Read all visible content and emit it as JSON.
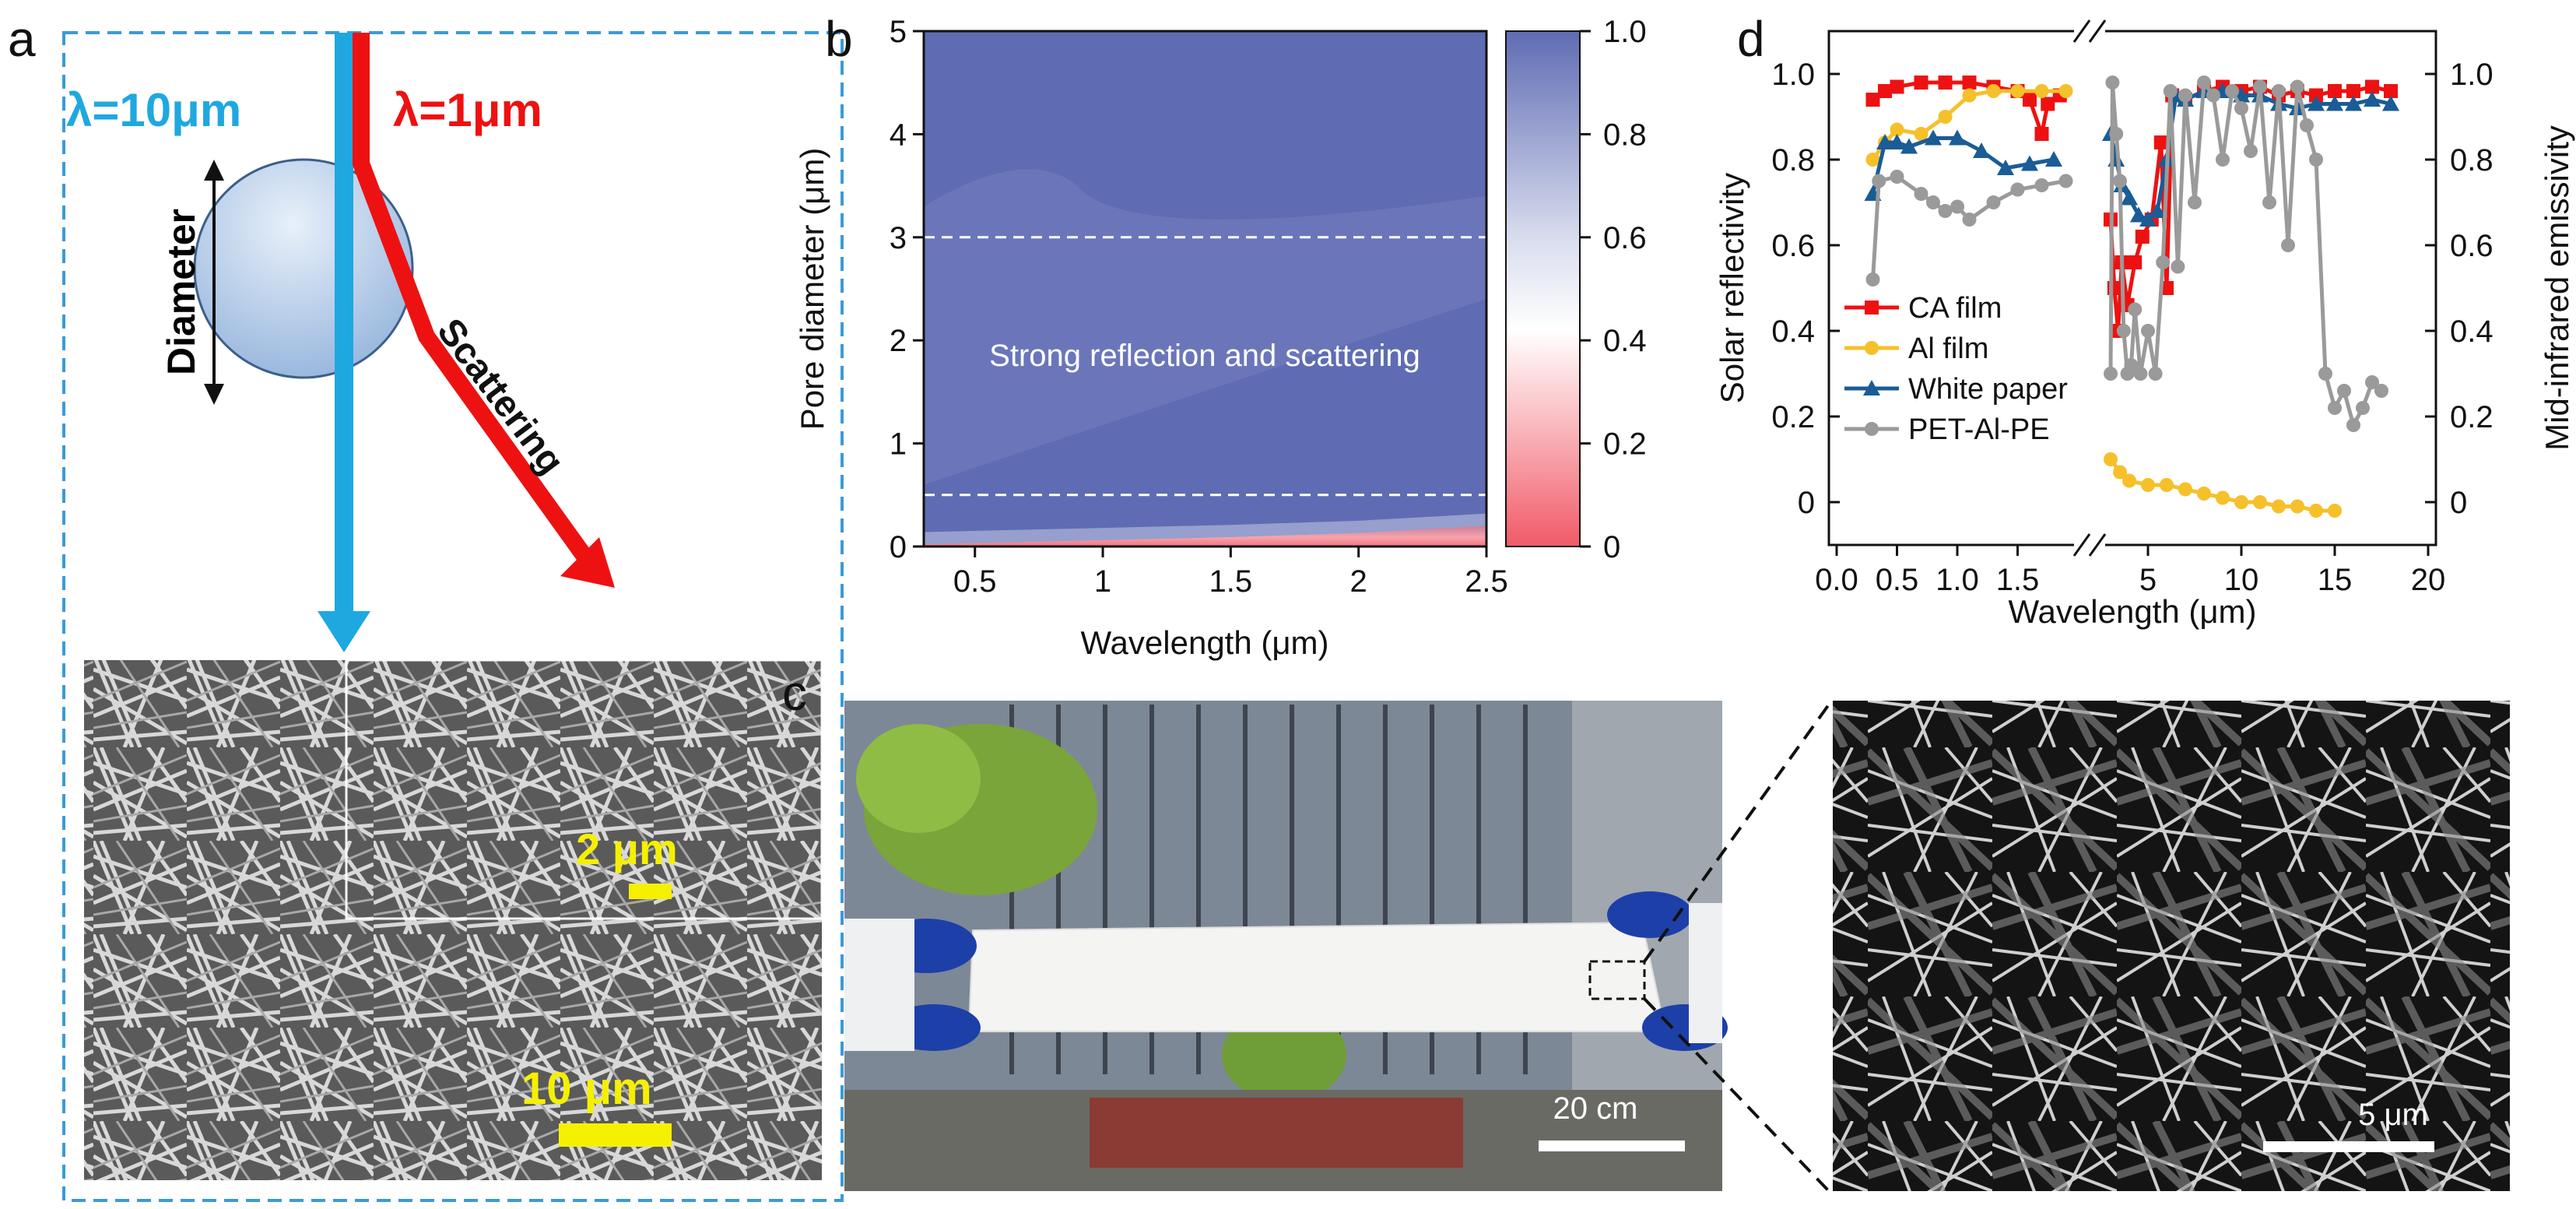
{
  "figure": {
    "panels": {
      "a": {
        "letter": "a",
        "beam_long_label": "λ=10μm",
        "beam_short_label": "λ=1μm",
        "diameter_label": "Diameter",
        "scattering_label": "Scattering",
        "sem_large_scale": "10 μm",
        "sem_inset_scale": "2 μm",
        "colors": {
          "long_beam": "#1fa8e0",
          "short_beam": "#ee1111",
          "scale_text": "#f5f000",
          "frame": "#3a9bd6"
        }
      },
      "b": {
        "letter": "b",
        "annotation": "Strong reflection and scattering",
        "colorbar_ticks": [
          "0",
          "0.2",
          "0.4",
          "0.6",
          "0.8",
          "1.0"
        ]
      },
      "c": {
        "letter": "c",
        "photo_scale": "20 cm",
        "sem_scale": "5 μm"
      },
      "d": {
        "letter": "d"
      }
    }
  },
  "chart_data": [
    {
      "type": "heatmap",
      "xlabel": "Wavelength (μm)",
      "ylabel": "Pore diameter (μm)",
      "xlim": [
        0.3,
        2.5
      ],
      "ylim": [
        0,
        5
      ],
      "xticks": [
        0.5,
        1,
        1.5,
        2,
        2.5
      ],
      "yticks": [
        0,
        1,
        2,
        3,
        4,
        5
      ],
      "colorbar_range": [
        0,
        1.0
      ],
      "colormap": {
        "low": "#f05a68",
        "mid": "#ffffff",
        "high": "#5f6cb3"
      },
      "dashed_lines_y": [
        0.5,
        3.0
      ],
      "low_region_boundary": [
        [
          0.3,
          0.02
        ],
        [
          1.0,
          0.06
        ],
        [
          1.5,
          0.09
        ],
        [
          2.0,
          0.13
        ],
        [
          2.5,
          0.2
        ]
      ]
    },
    {
      "type": "line",
      "xlabel": "Wavelength (μm)",
      "ylabel_left": "Solar reflectivity",
      "ylabel_right": "Mid-infrared emissivity",
      "ylim": [
        -0.1,
        1.1
      ],
      "yticks": [
        0,
        0.2,
        0.4,
        0.6,
        0.8,
        1.0
      ],
      "x_segment_1": {
        "range": [
          0,
          2
        ],
        "ticks": [
          "0.0",
          "0.5",
          "1.0",
          "1.5"
        ]
      },
      "x_segment_2": {
        "range": [
          2.5,
          20
        ],
        "ticks": [
          "5",
          "10",
          "15",
          "20"
        ]
      },
      "axis_break": true,
      "legend_position": "left-center",
      "series": [
        {
          "name": "CA film",
          "color": "#ee1111",
          "marker": "square",
          "solar": [
            [
              0.3,
              0.94
            ],
            [
              0.4,
              0.96
            ],
            [
              0.5,
              0.97
            ],
            [
              0.7,
              0.98
            ],
            [
              0.9,
              0.98
            ],
            [
              1.1,
              0.98
            ],
            [
              1.3,
              0.97
            ],
            [
              1.5,
              0.96
            ],
            [
              1.6,
              0.94
            ],
            [
              1.7,
              0.86
            ],
            [
              1.75,
              0.93
            ],
            [
              1.85,
              0.95
            ]
          ],
          "infrared": [
            [
              3.0,
              0.66
            ],
            [
              3.2,
              0.5
            ],
            [
              3.4,
              0.4
            ],
            [
              3.6,
              0.56
            ],
            [
              3.9,
              0.46
            ],
            [
              4.3,
              0.56
            ],
            [
              4.7,
              0.62
            ],
            [
              5.2,
              0.66
            ],
            [
              5.7,
              0.84
            ],
            [
              6.0,
              0.5
            ],
            [
              6.3,
              0.95
            ],
            [
              7,
              0.94
            ],
            [
              8,
              0.96
            ],
            [
              9,
              0.97
            ],
            [
              10,
              0.96
            ],
            [
              11,
              0.97
            ],
            [
              12,
              0.95
            ],
            [
              13,
              0.96
            ],
            [
              14,
              0.95
            ],
            [
              15,
              0.96
            ],
            [
              16,
              0.96
            ],
            [
              17,
              0.97
            ],
            [
              18,
              0.96
            ]
          ]
        },
        {
          "name": "Al film",
          "color": "#f5c02a",
          "marker": "circle",
          "solar": [
            [
              0.3,
              0.8
            ],
            [
              0.4,
              0.84
            ],
            [
              0.5,
              0.87
            ],
            [
              0.7,
              0.86
            ],
            [
              0.9,
              0.9
            ],
            [
              1.1,
              0.95
            ],
            [
              1.3,
              0.96
            ],
            [
              1.5,
              0.96
            ],
            [
              1.7,
              0.96
            ],
            [
              1.9,
              0.96
            ]
          ],
          "infrared": [
            [
              3.0,
              0.1
            ],
            [
              3.5,
              0.07
            ],
            [
              4,
              0.05
            ],
            [
              5,
              0.04
            ],
            [
              6,
              0.04
            ],
            [
              7,
              0.03
            ],
            [
              8,
              0.02
            ],
            [
              9,
              0.01
            ],
            [
              10,
              0.0
            ],
            [
              11,
              0.0
            ],
            [
              12,
              -0.01
            ],
            [
              13,
              -0.01
            ],
            [
              14,
              -0.02
            ],
            [
              15,
              -0.02
            ]
          ]
        },
        {
          "name": "White paper",
          "color": "#1a5c96",
          "marker": "triangle",
          "solar": [
            [
              0.3,
              0.72
            ],
            [
              0.4,
              0.84
            ],
            [
              0.5,
              0.84
            ],
            [
              0.6,
              0.83
            ],
            [
              0.8,
              0.85
            ],
            [
              1.0,
              0.85
            ],
            [
              1.2,
              0.82
            ],
            [
              1.4,
              0.78
            ],
            [
              1.6,
              0.79
            ],
            [
              1.8,
              0.8
            ]
          ],
          "infrared": [
            [
              3.0,
              0.86
            ],
            [
              3.3,
              0.8
            ],
            [
              3.6,
              0.74
            ],
            [
              4.0,
              0.71
            ],
            [
              4.5,
              0.67
            ],
            [
              5,
              0.66
            ],
            [
              5.5,
              0.68
            ],
            [
              6,
              0.8
            ],
            [
              6.5,
              0.95
            ],
            [
              7,
              0.94
            ],
            [
              8,
              0.96
            ],
            [
              9,
              0.96
            ],
            [
              10,
              0.95
            ],
            [
              11,
              0.95
            ],
            [
              12,
              0.93
            ],
            [
              13,
              0.92
            ],
            [
              14,
              0.93
            ],
            [
              15,
              0.93
            ],
            [
              16,
              0.93
            ],
            [
              17,
              0.94
            ],
            [
              18,
              0.93
            ]
          ]
        },
        {
          "name": "PET-Al-PE",
          "color": "#9a9a9a",
          "marker": "circle",
          "solar": [
            [
              0.3,
              0.52
            ],
            [
              0.35,
              0.75
            ],
            [
              0.5,
              0.76
            ],
            [
              0.7,
              0.72
            ],
            [
              0.8,
              0.7
            ],
            [
              0.9,
              0.68
            ],
            [
              1.0,
              0.69
            ],
            [
              1.1,
              0.66
            ],
            [
              1.3,
              0.7
            ],
            [
              1.5,
              0.73
            ],
            [
              1.7,
              0.74
            ],
            [
              1.9,
              0.75
            ]
          ],
          "infrared": [
            [
              3.0,
              0.3
            ],
            [
              3.1,
              0.98
            ],
            [
              3.3,
              0.86
            ],
            [
              3.5,
              0.75
            ],
            [
              3.7,
              0.4
            ],
            [
              3.9,
              0.3
            ],
            [
              4.1,
              0.32
            ],
            [
              4.3,
              0.45
            ],
            [
              4.6,
              0.3
            ],
            [
              5,
              0.4
            ],
            [
              5.4,
              0.3
            ],
            [
              5.8,
              0.56
            ],
            [
              6.2,
              0.96
            ],
            [
              6.6,
              0.55
            ],
            [
              7,
              0.95
            ],
            [
              7.5,
              0.7
            ],
            [
              8,
              0.98
            ],
            [
              8.5,
              0.95
            ],
            [
              9,
              0.8
            ],
            [
              9.5,
              0.96
            ],
            [
              10,
              0.92
            ],
            [
              10.5,
              0.82
            ],
            [
              11,
              0.97
            ],
            [
              11.5,
              0.7
            ],
            [
              12,
              0.96
            ],
            [
              12.5,
              0.6
            ],
            [
              13,
              0.97
            ],
            [
              13.5,
              0.88
            ],
            [
              14,
              0.8
            ],
            [
              14.5,
              0.3
            ],
            [
              15,
              0.22
            ],
            [
              15.5,
              0.26
            ],
            [
              16,
              0.18
            ],
            [
              16.5,
              0.22
            ],
            [
              17,
              0.28
            ],
            [
              17.5,
              0.26
            ]
          ]
        }
      ]
    }
  ]
}
